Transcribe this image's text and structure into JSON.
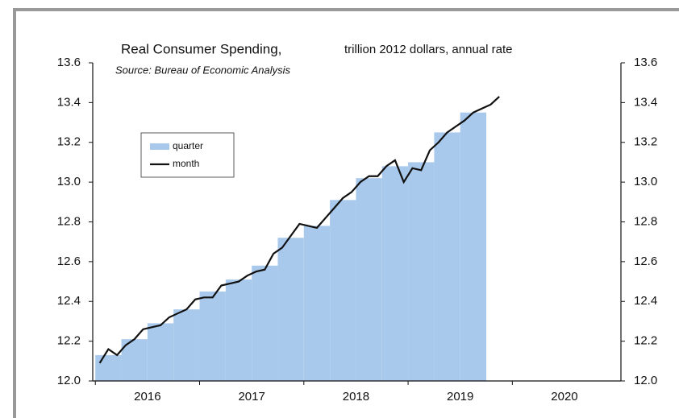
{
  "chart_data": {
    "type": "bar+line",
    "title": "Real Consumer Spending,",
    "units": "trillion 2012 dollars, annual rate",
    "source": "Source: Bureau of Economic Analysis",
    "x_labels": [
      "2016",
      "2017",
      "2018",
      "2019",
      "2020"
    ],
    "ylim": [
      12.0,
      13.6
    ],
    "yticks": [
      {
        "value": 12.0,
        "label": "12.0"
      },
      {
        "value": 12.2,
        "label": "12.2"
      },
      {
        "value": 12.4,
        "label": "12.4"
      },
      {
        "value": 12.6,
        "label": "12.6"
      },
      {
        "value": 12.8,
        "label": "12.8"
      },
      {
        "value": 13.0,
        "label": "13.0"
      },
      {
        "value": 13.2,
        "label": "13.2"
      },
      {
        "value": 13.4,
        "label": "13.4"
      },
      {
        "value": 13.6,
        "label": "13.6"
      }
    ],
    "legend": "upper left",
    "series": [
      {
        "name": "quarter",
        "color": "#a9c9ec",
        "values": [
          12.13,
          12.21,
          12.29,
          12.36,
          12.45,
          12.51,
          12.58,
          12.72,
          12.78,
          12.91,
          13.02,
          13.08,
          13.1,
          13.25,
          13.35
        ]
      },
      {
        "name": "month",
        "color": "#111111",
        "values": [
          12.09,
          12.16,
          12.13,
          12.18,
          12.21,
          12.26,
          12.27,
          12.28,
          12.32,
          12.34,
          12.36,
          12.41,
          12.42,
          12.42,
          12.48,
          12.49,
          12.5,
          12.53,
          12.55,
          12.56,
          12.64,
          12.67,
          12.73,
          12.79,
          12.78,
          12.77,
          12.82,
          12.87,
          12.92,
          12.95,
          13.0,
          13.03,
          13.03,
          13.08,
          13.11,
          13.0,
          13.07,
          13.06,
          13.16,
          13.2,
          13.25,
          13.28,
          13.31,
          13.35,
          13.37,
          13.39,
          13.43
        ]
      }
    ]
  }
}
